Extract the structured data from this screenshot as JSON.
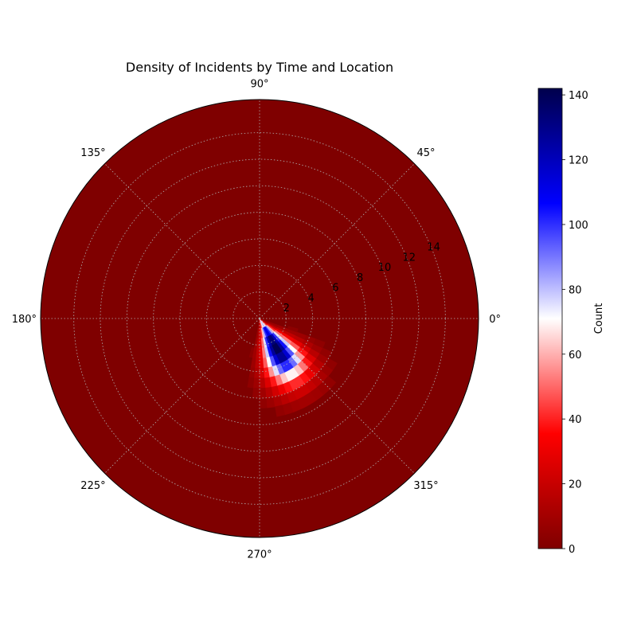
{
  "chart_data": {
    "type": "heatmap",
    "projection": "polar",
    "title": "Density of Incidents by Time and Location",
    "theta_tick_labels": [
      "0°",
      "45°",
      "90°",
      "135°",
      "180°",
      "225°",
      "270°",
      "315°"
    ],
    "theta_ticks_deg": [
      0,
      45,
      90,
      135,
      180,
      225,
      270,
      315
    ],
    "r_tick_labels": [
      "2",
      "4",
      "6",
      "8",
      "10",
      "12",
      "14"
    ],
    "r_ticks": [
      2,
      4,
      6,
      8,
      10,
      12,
      14
    ],
    "r_lim": [
      0,
      16.5
    ],
    "grid": true,
    "colormap": "seismic_r",
    "colorbar": {
      "label": "Count",
      "range": [
        0,
        142
      ],
      "tick_labels": [
        "0",
        "20",
        "40",
        "60",
        "80",
        "100",
        "120",
        "140"
      ],
      "ticks": [
        0,
        20,
        40,
        60,
        80,
        100,
        120,
        140
      ],
      "orientation": "vertical",
      "placement": "right"
    },
    "density_peak": {
      "theta_deg": 300,
      "r": 2.5,
      "value": 142
    },
    "density_spread": {
      "theta_sd_deg": 16,
      "r_sd": 2.0
    },
    "bins": {
      "theta_count": 72,
      "r_count": 22
    }
  }
}
